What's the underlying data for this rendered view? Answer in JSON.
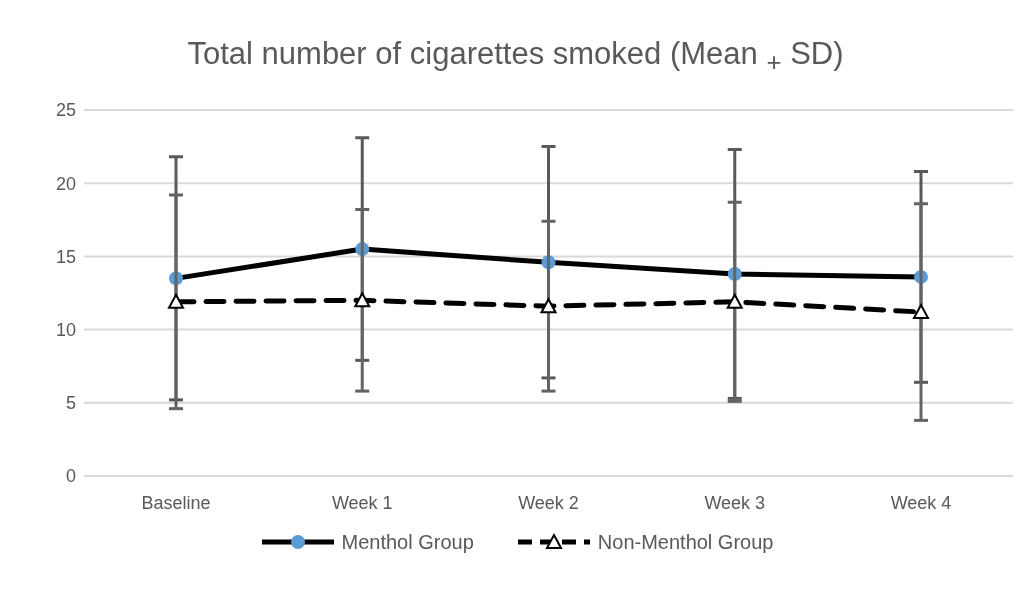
{
  "chart_data": {
    "type": "line",
    "title": "Total number of cigarettes smoked (Mean $_{+}$ SD)",
    "categories": [
      "Baseline",
      "Week 1",
      "Week 2",
      "Week 3",
      "Week 4"
    ],
    "series": [
      {
        "name": "Menthol Group",
        "color": "#5b9bd5",
        "marker": "circle",
        "line_style": "solid",
        "values": [
          13.5,
          15.5,
          14.6,
          13.8,
          13.6
        ],
        "errors": [
          8.3,
          7.6,
          7.9,
          8.5,
          7.2
        ]
      },
      {
        "name": "Non-Menthol Group",
        "color": "#ffffff",
        "marker": "triangle",
        "line_style": "dashed",
        "values": [
          11.9,
          12.0,
          11.6,
          11.9,
          11.2
        ],
        "errors": [
          7.3,
          6.2,
          5.8,
          6.8,
          7.4
        ]
      }
    ],
    "ylim": [
      0,
      25
    ],
    "yticks": [
      0,
      5,
      10,
      15,
      20,
      25
    ],
    "grid": "y",
    "legend": "bottom"
  }
}
